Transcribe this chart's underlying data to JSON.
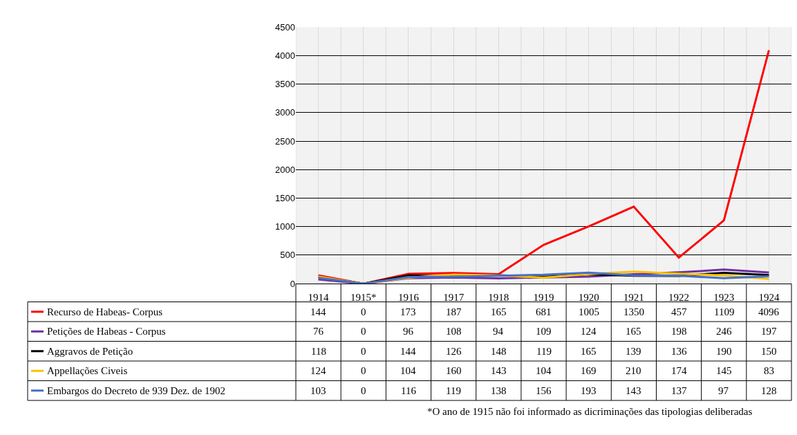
{
  "chart_data": {
    "type": "line",
    "categories": [
      "1914",
      "1915*",
      "1916",
      "1917",
      "1918",
      "1919",
      "1920",
      "1921",
      "1922",
      "1923",
      "1924"
    ],
    "series": [
      {
        "name": "Recurso de Habeas- Corpus",
        "color": "#ff0000",
        "values": [
          144,
          0,
          173,
          187,
          165,
          681,
          1005,
          1350,
          457,
          1109,
          4096
        ]
      },
      {
        "name": "Petições de Habeas - Corpus",
        "color": "#7030a0",
        "values": [
          76,
          0,
          96,
          108,
          94,
          109,
          124,
          165,
          198,
          246,
          197
        ]
      },
      {
        "name": "Aggravos de Petição",
        "color": "#000000",
        "values": [
          118,
          0,
          144,
          126,
          148,
          119,
          165,
          139,
          136,
          190,
          150
        ]
      },
      {
        "name": "Appellações Civeis",
        "color": "#ffc000",
        "values": [
          124,
          0,
          104,
          160,
          143,
          104,
          169,
          210,
          174,
          145,
          83
        ]
      },
      {
        "name": "Embargos do Decreto de 939 Dez. de 1902",
        "color": "#4472c4",
        "values": [
          103,
          0,
          116,
          119,
          138,
          156,
          193,
          143,
          137,
          97,
          128
        ]
      }
    ],
    "ylim": [
      0,
      4500
    ],
    "yticks": [
      0,
      500,
      1000,
      1500,
      2000,
      2500,
      3000,
      3500,
      4000,
      4500
    ],
    "grid": true,
    "legend": "bottom",
    "data_labels": true,
    "marker": "none",
    "line_style": "solid",
    "annotations": [
      "*O ano de 1915 não foi informado as dicriminações das tipologias deliberadas"
    ]
  }
}
